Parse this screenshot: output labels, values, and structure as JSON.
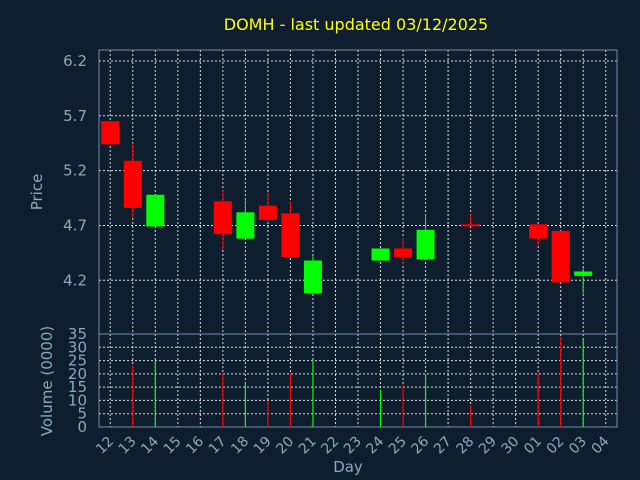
{
  "chart_data": {
    "type": "candlestick",
    "title": "DOMH - last updated 03/12/2025",
    "xlabel": "Day",
    "colors": {
      "background": "#0f1e2e",
      "axis": "#6f8faf",
      "grid": "#ffffff",
      "text": "#8aa8c8",
      "title": "#ffff00",
      "up": "#00ff00",
      "down": "#ff0000"
    },
    "x_ticks": [
      "12",
      "13",
      "14",
      "15",
      "16",
      "17",
      "18",
      "19",
      "20",
      "21",
      "22",
      "23",
      "24",
      "25",
      "26",
      "27",
      "28",
      "29",
      "30",
      "01",
      "02",
      "03",
      "04"
    ],
    "price_panel": {
      "ylabel": "Price",
      "yticks": [
        4.2,
        4.7,
        5.2,
        5.7,
        6.2
      ],
      "ylim": [
        3.71,
        6.3
      ],
      "candles": [
        {
          "day": "12",
          "open": 5.65,
          "high": 5.65,
          "low": 5.44,
          "close": 5.44
        },
        {
          "day": "13",
          "open": 5.29,
          "high": 5.45,
          "low": 4.77,
          "close": 4.86
        },
        {
          "day": "14",
          "open": 4.69,
          "high": 4.98,
          "low": 4.69,
          "close": 4.98
        },
        {
          "day": "17",
          "open": 4.92,
          "high": 5.02,
          "low": 4.48,
          "close": 4.62
        },
        {
          "day": "18",
          "open": 4.58,
          "high": 4.95,
          "low": 4.58,
          "close": 4.82
        },
        {
          "day": "19",
          "open": 4.88,
          "high": 5.0,
          "low": 4.74,
          "close": 4.75
        },
        {
          "day": "20",
          "open": 4.81,
          "high": 4.92,
          "low": 4.41,
          "close": 4.41
        },
        {
          "day": "21",
          "open": 4.08,
          "high": 4.42,
          "low": 4.08,
          "close": 4.38
        },
        {
          "day": "24",
          "open": 4.38,
          "high": 4.49,
          "low": 4.38,
          "close": 4.49
        },
        {
          "day": "25",
          "open": 4.49,
          "high": 4.59,
          "low": 4.35,
          "close": 4.41
        },
        {
          "day": "26",
          "open": 4.39,
          "high": 4.8,
          "low": 4.39,
          "close": 4.66
        },
        {
          "day": "28",
          "open": 4.71,
          "high": 4.8,
          "low": 4.69,
          "close": 4.7
        },
        {
          "day": "01",
          "open": 4.71,
          "high": 4.71,
          "low": 4.52,
          "close": 4.58
        },
        {
          "day": "02",
          "open": 4.65,
          "high": 4.65,
          "low": 4.18,
          "close": 4.18
        },
        {
          "day": "03",
          "open": 4.24,
          "high": 4.31,
          "low": 4.08,
          "close": 4.28
        }
      ]
    },
    "volume_panel": {
      "ylabel": "Volume (0000)",
      "yticks": [
        0,
        5,
        10,
        15,
        20,
        25,
        30,
        35
      ],
      "ylim": [
        0,
        35
      ],
      "bars": [
        {
          "day": "13",
          "value": 23,
          "direction": "down"
        },
        {
          "day": "14",
          "value": 25,
          "direction": "up"
        },
        {
          "day": "17",
          "value": 20,
          "direction": "down"
        },
        {
          "day": "18",
          "value": 17,
          "direction": "up"
        },
        {
          "day": "19",
          "value": 10,
          "direction": "down"
        },
        {
          "day": "20",
          "value": 20,
          "direction": "down"
        },
        {
          "day": "21",
          "value": 25,
          "direction": "up"
        },
        {
          "day": "24",
          "value": 14,
          "direction": "up"
        },
        {
          "day": "25",
          "value": 16,
          "direction": "down"
        },
        {
          "day": "26",
          "value": 20,
          "direction": "up"
        },
        {
          "day": "28",
          "value": 8,
          "direction": "down"
        },
        {
          "day": "01",
          "value": 20,
          "direction": "down"
        },
        {
          "day": "02",
          "value": 34,
          "direction": "down"
        },
        {
          "day": "03",
          "value": 33,
          "direction": "up"
        }
      ]
    },
    "grid": true
  }
}
